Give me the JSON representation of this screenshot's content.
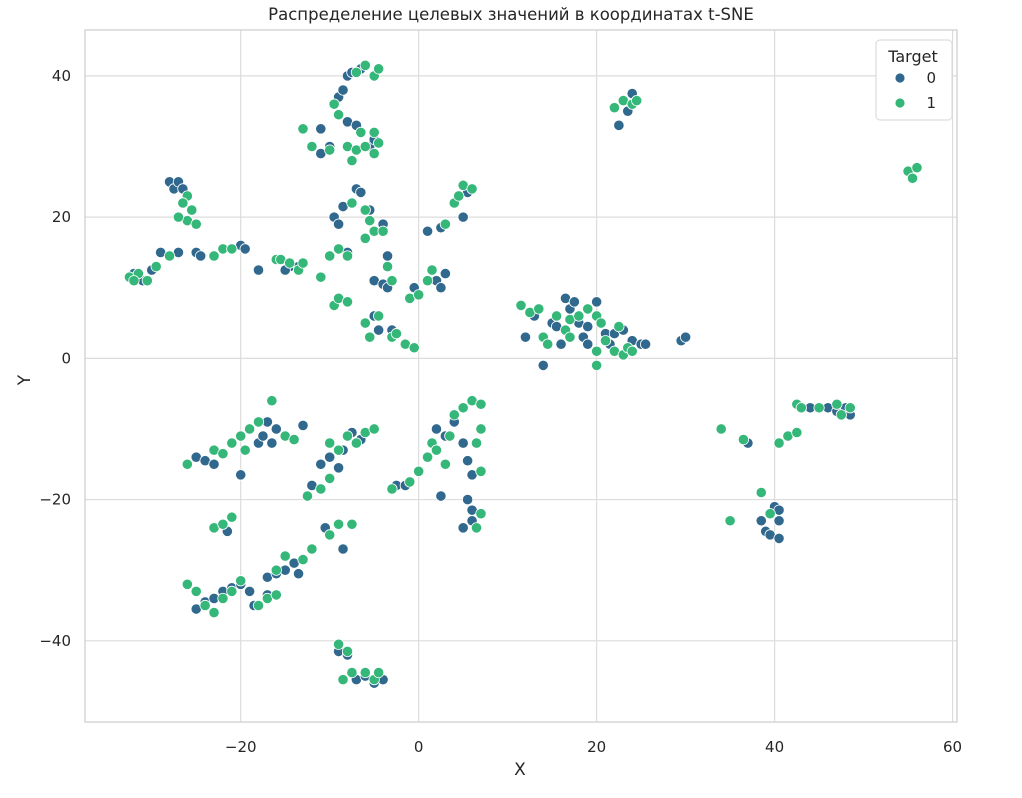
{
  "chart_data": {
    "type": "scatter",
    "title": "Распределение целевых значений в координатах t-SNE",
    "xlabel": "X",
    "ylabel": "Y",
    "xlim": [
      -37.5,
      60.5
    ],
    "ylim": [
      -51.5,
      46.5
    ],
    "xticks": [
      -20,
      0,
      20,
      40,
      60
    ],
    "yticks": [
      -40,
      -20,
      0,
      20,
      40
    ],
    "xtick_labels": [
      "−20",
      "0",
      "20",
      "40",
      "60"
    ],
    "ytick_labels": [
      "−40",
      "−20",
      "0",
      "20",
      "40"
    ],
    "grid": true,
    "legend": {
      "title": "Target",
      "placement": "top-right"
    },
    "colors": {
      "0": "#31688e",
      "1": "#35b779",
      "grid": "#dcdcdc",
      "frame": "#cccccc"
    },
    "series": [
      {
        "name": "0",
        "points": [
          [
            -32,
            12
          ],
          [
            -31,
            11
          ],
          [
            -30,
            12.5
          ],
          [
            -29,
            15
          ],
          [
            -28,
            25
          ],
          [
            -27.5,
            24
          ],
          [
            -27,
            25
          ],
          [
            -26.5,
            24
          ],
          [
            -27,
            15
          ],
          [
            -25,
            15
          ],
          [
            -24.5,
            14.5
          ],
          [
            -20,
            16
          ],
          [
            -19.5,
            15.5
          ],
          [
            -18,
            12.5
          ],
          [
            -11,
            29
          ],
          [
            -10,
            30
          ],
          [
            -11,
            32.5
          ],
          [
            -9,
            37
          ],
          [
            -8.5,
            38
          ],
          [
            -8,
            33.5
          ],
          [
            -7,
            33
          ],
          [
            -8,
            40
          ],
          [
            -7.5,
            40.5
          ],
          [
            -6.5,
            41
          ],
          [
            -5.5,
            30
          ],
          [
            -5,
            31
          ],
          [
            -14.5,
            13
          ],
          [
            -15,
            12.5
          ],
          [
            -13.5,
            13
          ],
          [
            -9.5,
            20
          ],
          [
            -8.5,
            21.5
          ],
          [
            -9,
            19
          ],
          [
            -7,
            24
          ],
          [
            -6.5,
            23.5
          ],
          [
            -5.5,
            21
          ],
          [
            -4,
            19
          ],
          [
            -3.5,
            14.5
          ],
          [
            -5,
            11
          ],
          [
            -4,
            10.5
          ],
          [
            -3.5,
            10
          ],
          [
            -8,
            15
          ],
          [
            -5,
            6
          ],
          [
            -4.5,
            4
          ],
          [
            -3,
            4
          ],
          [
            2,
            11
          ],
          [
            2.5,
            10
          ],
          [
            3,
            12
          ],
          [
            2.5,
            18.5
          ],
          [
            1,
            18
          ],
          [
            5,
            20
          ],
          [
            6,
            24
          ],
          [
            5.5,
            23.5
          ],
          [
            -0.5,
            10
          ],
          [
            14,
            -1
          ],
          [
            12,
            3
          ],
          [
            13,
            6
          ],
          [
            15,
            5
          ],
          [
            16,
            2
          ],
          [
            16.5,
            8.5
          ],
          [
            17,
            7
          ],
          [
            17.5,
            8
          ],
          [
            18,
            5
          ],
          [
            18.5,
            3
          ],
          [
            19,
            2
          ],
          [
            19,
            4.5
          ],
          [
            20,
            8
          ],
          [
            21,
            3.5
          ],
          [
            21.5,
            2
          ],
          [
            22,
            3.5
          ],
          [
            23,
            4
          ],
          [
            24,
            2.5
          ],
          [
            25,
            2
          ],
          [
            25.5,
            2
          ],
          [
            29.5,
            2.5
          ],
          [
            30,
            3
          ],
          [
            15.5,
            4.5
          ],
          [
            22.5,
            33
          ],
          [
            23.5,
            35
          ],
          [
            24,
            37.5
          ],
          [
            -25,
            -14
          ],
          [
            -24,
            -14.5
          ],
          [
            -23,
            -15
          ],
          [
            -18,
            -12
          ],
          [
            -17.5,
            -11
          ],
          [
            -16.5,
            -12
          ],
          [
            -17,
            -9
          ],
          [
            -16,
            -10
          ],
          [
            -20,
            -16.5
          ],
          [
            -13,
            -9.5
          ],
          [
            -12,
            -18
          ],
          [
            -11,
            -15
          ],
          [
            -10,
            -14
          ],
          [
            -9,
            -15.5
          ],
          [
            -8.5,
            -13
          ],
          [
            -7.5,
            -10.5
          ],
          [
            -6.5,
            -11.5
          ],
          [
            -2.5,
            -18
          ],
          [
            -1.5,
            -18
          ],
          [
            2.5,
            -19.5
          ],
          [
            2,
            -10
          ],
          [
            3,
            -11
          ],
          [
            4,
            -9
          ],
          [
            5,
            -12
          ],
          [
            5.5,
            -14.5
          ],
          [
            6,
            -16.5
          ],
          [
            5.5,
            -20
          ],
          [
            6,
            -21.5
          ],
          [
            5,
            -24
          ],
          [
            6,
            -23
          ],
          [
            -21.5,
            -24.5
          ],
          [
            -10.5,
            -24
          ],
          [
            -8.5,
            -27
          ],
          [
            -25,
            -35.5
          ],
          [
            -24,
            -34.5
          ],
          [
            -23,
            -34
          ],
          [
            -22,
            -33
          ],
          [
            -21,
            -32.5
          ],
          [
            -20,
            -32
          ],
          [
            -19,
            -33
          ],
          [
            -17,
            -31
          ],
          [
            -16,
            -30.5
          ],
          [
            -15,
            -30
          ],
          [
            -14,
            -29
          ],
          [
            -13.5,
            -30.5
          ],
          [
            -18.5,
            -35
          ],
          [
            -17,
            -33.5
          ],
          [
            -9,
            -41.5
          ],
          [
            -8,
            -42
          ],
          [
            -7,
            -45.5
          ],
          [
            -6,
            -45
          ],
          [
            -5,
            -46
          ],
          [
            -4,
            -45.5
          ],
          [
            40,
            -21
          ],
          [
            40.5,
            -21.5
          ],
          [
            40.5,
            -23
          ],
          [
            38.5,
            -23
          ],
          [
            39,
            -24.5
          ],
          [
            39.5,
            -25
          ],
          [
            40.5,
            -25.5
          ],
          [
            37,
            -12
          ],
          [
            44,
            -7
          ],
          [
            46,
            -7
          ],
          [
            47,
            -7.5
          ],
          [
            48,
            -7
          ],
          [
            48.5,
            -8
          ]
        ]
      },
      {
        "name": "1",
        "points": [
          [
            -32.5,
            11.5
          ],
          [
            -31.5,
            12
          ],
          [
            -30.5,
            11
          ],
          [
            -32,
            11
          ],
          [
            -29.5,
            13
          ],
          [
            -28,
            14.5
          ],
          [
            -26,
            19.5
          ],
          [
            -25,
            19
          ],
          [
            -27,
            20
          ],
          [
            -26,
            23
          ],
          [
            -26.5,
            22
          ],
          [
            -25.5,
            21
          ],
          [
            -23,
            14.5
          ],
          [
            -22,
            15.5
          ],
          [
            -21,
            15.5
          ],
          [
            -16,
            14
          ],
          [
            -15.5,
            14
          ],
          [
            -14.5,
            13.5
          ],
          [
            -13.5,
            12.5
          ],
          [
            -13,
            13.5
          ],
          [
            -13,
            32.5
          ],
          [
            -12,
            30
          ],
          [
            -10,
            29.5
          ],
          [
            -9,
            34.5
          ],
          [
            -9.5,
            36
          ],
          [
            -8,
            30
          ],
          [
            -7.5,
            28
          ],
          [
            -7,
            29.5
          ],
          [
            -6.5,
            32
          ],
          [
            -6,
            30
          ],
          [
            -5,
            32
          ],
          [
            -4.5,
            30.5
          ],
          [
            -5,
            29
          ],
          [
            -7,
            40.5
          ],
          [
            -6,
            41.5
          ],
          [
            -5,
            40
          ],
          [
            -4.5,
            41
          ],
          [
            -11,
            11.5
          ],
          [
            -10,
            14.5
          ],
          [
            -9,
            15.5
          ],
          [
            -8,
            14.5
          ],
          [
            -9.5,
            7.5
          ],
          [
            -9,
            8.5
          ],
          [
            -8,
            8
          ],
          [
            -6,
            21
          ],
          [
            -5.5,
            19.5
          ],
          [
            -6,
            17
          ],
          [
            -5,
            18
          ],
          [
            -4,
            18
          ],
          [
            -3.5,
            13
          ],
          [
            -3,
            11
          ],
          [
            -6,
            5
          ],
          [
            -5.5,
            3
          ],
          [
            -4.5,
            6
          ],
          [
            -3,
            3
          ],
          [
            -2.5,
            3.5
          ],
          [
            -1.5,
            2
          ],
          [
            -0.5,
            1.5
          ],
          [
            -1,
            8.5
          ],
          [
            0,
            9
          ],
          [
            1,
            11
          ],
          [
            -7.5,
            22
          ],
          [
            1.5,
            12.5
          ],
          [
            3,
            19
          ],
          [
            4,
            22
          ],
          [
            4.5,
            23
          ],
          [
            5,
            24.5
          ],
          [
            6,
            24
          ],
          [
            11.5,
            7.5
          ],
          [
            12.5,
            6.5
          ],
          [
            13.5,
            7
          ],
          [
            14,
            3
          ],
          [
            14.5,
            2
          ],
          [
            15.5,
            6
          ],
          [
            16.5,
            4
          ],
          [
            17,
            3
          ],
          [
            17,
            5.5
          ],
          [
            18,
            6
          ],
          [
            19,
            7
          ],
          [
            20,
            6
          ],
          [
            20,
            1
          ],
          [
            20.5,
            5
          ],
          [
            21,
            2.5
          ],
          [
            22,
            1
          ],
          [
            22.5,
            4.5
          ],
          [
            23,
            0.5
          ],
          [
            23.5,
            1.5
          ],
          [
            24,
            1
          ],
          [
            20,
            -1
          ],
          [
            22,
            35.5
          ],
          [
            23,
            36.5
          ],
          [
            24,
            36
          ],
          [
            24.5,
            36.5
          ],
          [
            -26,
            -15
          ],
          [
            -23,
            -13
          ],
          [
            -22,
            -13.5
          ],
          [
            -21,
            -12
          ],
          [
            -20,
            -11
          ],
          [
            -19.5,
            -13
          ],
          [
            -19,
            -10
          ],
          [
            -18,
            -9
          ],
          [
            -16.5,
            -6
          ],
          [
            -15,
            -11
          ],
          [
            -14,
            -11.5
          ],
          [
            -12.5,
            -19.5
          ],
          [
            -11,
            -18.5
          ],
          [
            -10,
            -17
          ],
          [
            -10,
            -12
          ],
          [
            -9,
            -13
          ],
          [
            -8,
            -11
          ],
          [
            -7,
            -12
          ],
          [
            -6,
            -10.5
          ],
          [
            -5,
            -10
          ],
          [
            -3,
            -18.5
          ],
          [
            -1,
            -17.5
          ],
          [
            0,
            -16
          ],
          [
            1.5,
            -12
          ],
          [
            1,
            -14
          ],
          [
            2,
            -13
          ],
          [
            3,
            -15
          ],
          [
            3.5,
            -11
          ],
          [
            4,
            -8
          ],
          [
            5,
            -7
          ],
          [
            6,
            -6
          ],
          [
            7,
            -6.5
          ],
          [
            7,
            -10
          ],
          [
            6.5,
            -12
          ],
          [
            7,
            -16
          ],
          [
            7,
            -22
          ],
          [
            6.5,
            -24
          ],
          [
            -23,
            -24
          ],
          [
            -22,
            -23.5
          ],
          [
            -21,
            -22.5
          ],
          [
            -10,
            -25
          ],
          [
            -9,
            -23.5
          ],
          [
            -7.5,
            -23.5
          ],
          [
            -15,
            -28
          ],
          [
            -13,
            -28.5
          ],
          [
            -12,
            -27
          ],
          [
            -26,
            -32
          ],
          [
            -25,
            -33
          ],
          [
            -24,
            -35
          ],
          [
            -23,
            -36
          ],
          [
            -22,
            -34
          ],
          [
            -21,
            -33
          ],
          [
            -20,
            -31.5
          ],
          [
            -17,
            -34
          ],
          [
            -16,
            -33.5
          ],
          [
            -18,
            -35
          ],
          [
            -16,
            -30
          ],
          [
            -9,
            -40.5
          ],
          [
            -8,
            -41.5
          ],
          [
            -7.5,
            -44.5
          ],
          [
            -6,
            -44.5
          ],
          [
            -5,
            -45.5
          ],
          [
            -4.5,
            -44.5
          ],
          [
            -8.5,
            -45.5
          ],
          [
            34,
            -10
          ],
          [
            35,
            -23
          ],
          [
            36.5,
            -11.5
          ],
          [
            38.5,
            -19
          ],
          [
            39.5,
            -22
          ],
          [
            40.5,
            -12
          ],
          [
            41.5,
            -11
          ],
          [
            42.5,
            -10.5
          ],
          [
            42.5,
            -6.5
          ],
          [
            43,
            -7
          ],
          [
            45,
            -7
          ],
          [
            47,
            -6.5
          ],
          [
            47.5,
            -8
          ],
          [
            48.5,
            -7
          ],
          [
            55,
            26.5
          ],
          [
            55.5,
            25.5
          ],
          [
            56,
            27
          ]
        ]
      }
    ]
  }
}
